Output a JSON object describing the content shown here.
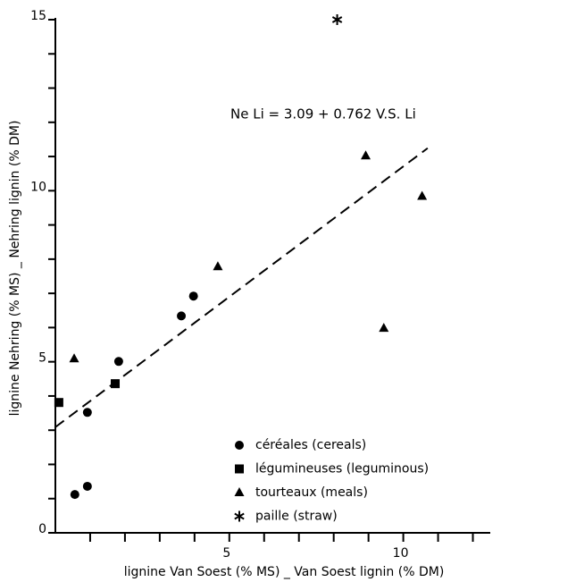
{
  "chart_data": {
    "type": "scatter",
    "xlabel": "lignine  Van Soest  (% MS) _ Van  Soest  lignin  (% DM)",
    "ylabel": "lignine  Nehring  (% MS) _ Nehring  lignin  (% DM)",
    "annotation": "Ne Li = 3.09 + 0.762 V.S. Li",
    "fit": {
      "intercept": 3.09,
      "slope": 0.762,
      "x_range": [
        0,
        10.7
      ]
    },
    "xlim": [
      0,
      12.5
    ],
    "ylim": [
      0,
      15
    ],
    "xticks": [
      5,
      10
    ],
    "yticks": [
      0,
      5,
      10,
      15
    ],
    "xminor_ticks": [
      1,
      2,
      3,
      4,
      6,
      7,
      8,
      9,
      11,
      12
    ],
    "yminor_ticks": [
      1,
      2,
      3,
      4,
      6,
      7,
      8,
      9,
      11,
      12,
      13,
      14
    ],
    "color": "#000000",
    "series": [
      {
        "name": "céréales (cereals)",
        "marker": "circle",
        "x": [
          0.56,
          0.92,
          0.92,
          1.82,
          3.62,
          3.97
        ],
        "values": [
          1.12,
          1.36,
          3.52,
          5.01,
          6.34,
          6.92
        ]
      },
      {
        "name": "légumineuses (leguminous)",
        "marker": "square",
        "x": [
          0.1,
          1.72
        ],
        "values": [
          3.81,
          4.36
        ]
      },
      {
        "name": "tourteaux (meals)",
        "marker": "triangle",
        "x": [
          0.54,
          4.67,
          8.92,
          10.54,
          9.44
        ],
        "values": [
          5.09,
          7.78,
          11.02,
          9.84,
          5.98
        ]
      },
      {
        "name": "paille (straw)",
        "marker": "star",
        "x": [
          8.1
        ],
        "values": [
          15.0
        ]
      }
    ]
  }
}
